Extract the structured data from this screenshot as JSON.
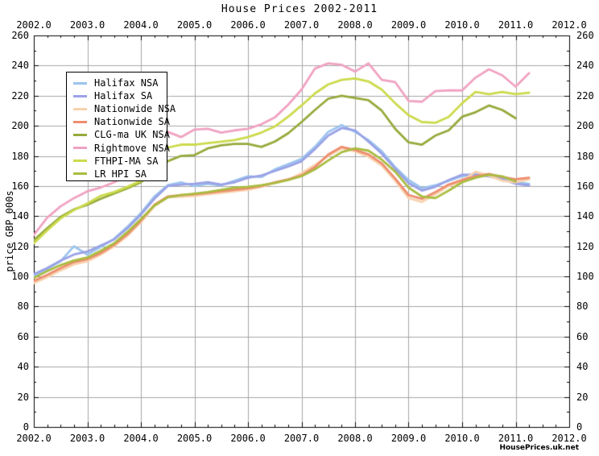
{
  "title": "House Prices 2002-2011",
  "watermark": "HousePrices.uk.net",
  "chart_data": {
    "type": "line",
    "title": "House Prices 2002-2011",
    "xlabel": "",
    "ylabel": "price GBP 000s",
    "xlim": [
      2002.0,
      2012.0
    ],
    "ylim": [
      0,
      260
    ],
    "grid": true,
    "grid_color": "#a6a6a6",
    "frame_color": "#000000",
    "legend_position": "upper-left",
    "x_ticks": [
      "2002.0",
      "2003.0",
      "2004.0",
      "2005.0",
      "2006.0",
      "2007.0",
      "2008.0",
      "2009.0",
      "2010.0",
      "2011.0",
      "2012.0"
    ],
    "x_tick_values": [
      2002,
      2003,
      2004,
      2005,
      2006,
      2007,
      2008,
      2009,
      2010,
      2011,
      2012
    ],
    "x_minor_step": 0.25,
    "y_ticks": [
      "0",
      "20",
      "40",
      "60",
      "80",
      "100",
      "120",
      "140",
      "160",
      "180",
      "200",
      "220",
      "240",
      "260"
    ],
    "y_tick_values": [
      0,
      20,
      40,
      60,
      80,
      100,
      120,
      140,
      160,
      180,
      200,
      220,
      240,
      260
    ],
    "y_minor_step": 10,
    "x_start": 2002.0,
    "x_step": 0.25,
    "series": [
      {
        "name": "Halifax NSA",
        "color": "#9bc4ee",
        "values": [
          100.5,
          105,
          110,
          120,
          114.5,
          119.5,
          125,
          133,
          142,
          153,
          160.5,
          162.5,
          160,
          161.5,
          160.5,
          163.5,
          166.5,
          166,
          171,
          174.5,
          178,
          186,
          196,
          200.5,
          196,
          190.5,
          183,
          172.5,
          164,
          158.5,
          160.5,
          163.5,
          166.5,
          168,
          167,
          165.5,
          162.5,
          161.5
        ]
      },
      {
        "name": "Halifax SA",
        "color": "#9aa2e6",
        "values": [
          101.5,
          105.5,
          110.5,
          114.5,
          116.5,
          120.5,
          124.5,
          132,
          141,
          151.5,
          160,
          161,
          161.5,
          162.5,
          161,
          162.5,
          165.5,
          167,
          170,
          173,
          176.5,
          184.5,
          193.5,
          198.5,
          197,
          189.5,
          181.5,
          171.5,
          162,
          157,
          159.5,
          164,
          167.5,
          167.5,
          166.5,
          164.5,
          161.5,
          160.5
        ]
      },
      {
        "name": "Nationwide NSA",
        "color": "#f8d2ae",
        "values": [
          95.5,
          99.5,
          104,
          108,
          110,
          114.5,
          120,
          127,
          136,
          146.5,
          152.5,
          153,
          153.5,
          154.5,
          155.5,
          156.5,
          157.5,
          159.5,
          162,
          164,
          168.5,
          174,
          180,
          185,
          183,
          179.5,
          173.5,
          163.5,
          152,
          149.5,
          154.5,
          160,
          163.5,
          169.5,
          167,
          163.5,
          162.5,
          164.5
        ]
      },
      {
        "name": "Nationwide SA",
        "color": "#ee8c6e",
        "values": [
          97,
          101,
          105.5,
          109.5,
          111.5,
          115.5,
          121,
          128,
          137,
          147.5,
          153,
          154,
          154.5,
          155.5,
          156.5,
          157.5,
          158.5,
          160,
          162.5,
          164.5,
          167,
          172.5,
          181,
          186,
          184,
          181,
          175,
          165,
          154,
          151.5,
          156,
          161,
          164,
          166.5,
          168,
          166,
          164.5,
          165.5
        ]
      },
      {
        "name": "CLG-ma UK NSA",
        "color": "#95aa3b",
        "values": [
          124,
          132,
          139.5,
          144.5,
          147.5,
          151.5,
          155,
          158.5,
          162.5,
          170,
          176.5,
          180,
          180.5,
          185,
          187,
          188,
          188,
          186,
          189.5,
          195,
          202.5,
          210.5,
          218,
          220,
          218.5,
          217,
          210,
          198,
          189,
          187.5,
          193.5,
          197,
          206,
          209,
          213.5,
          210.5,
          205
        ]
      },
      {
        "name": "Rightmove NSA",
        "color": "#f0a2c1",
        "values": [
          127.5,
          139,
          146.5,
          152,
          156.5,
          159,
          162.5,
          167.5,
          178,
          190,
          196,
          192.5,
          197.5,
          198,
          195.5,
          197,
          198,
          201,
          205.5,
          214,
          224,
          238,
          241.5,
          240.5,
          236,
          241.5,
          230.5,
          229,
          216.5,
          216,
          223,
          223.5,
          223.5,
          232,
          237.5,
          233.5,
          226,
          235
        ]
      },
      {
        "name": "FTHPI-MA SA",
        "color": "#ccda4c",
        "values": [
          122,
          130.5,
          138.5,
          144,
          148.5,
          153.5,
          156,
          159.5,
          163.5,
          177,
          185.5,
          187.5,
          187.5,
          188.5,
          189.5,
          190.5,
          192.5,
          195.5,
          199.5,
          206,
          213.5,
          221.5,
          227.5,
          230.5,
          231.5,
          229.5,
          224,
          215,
          207,
          202.5,
          202,
          206,
          215,
          222.5,
          221,
          222.5,
          221,
          222
        ]
      },
      {
        "name": "LR HPI SA",
        "color": "#a9bc40",
        "values": [
          99,
          103.5,
          107.5,
          110.5,
          112.5,
          117,
          122,
          129.5,
          138,
          147,
          152.5,
          154,
          155,
          156,
          157.5,
          159,
          159.5,
          160.5,
          162,
          164,
          166.5,
          171,
          177,
          182.5,
          185,
          183.5,
          177.5,
          169.5,
          159,
          153,
          152,
          157,
          162.5,
          165.5,
          167.5,
          166.5,
          163
        ]
      }
    ]
  }
}
